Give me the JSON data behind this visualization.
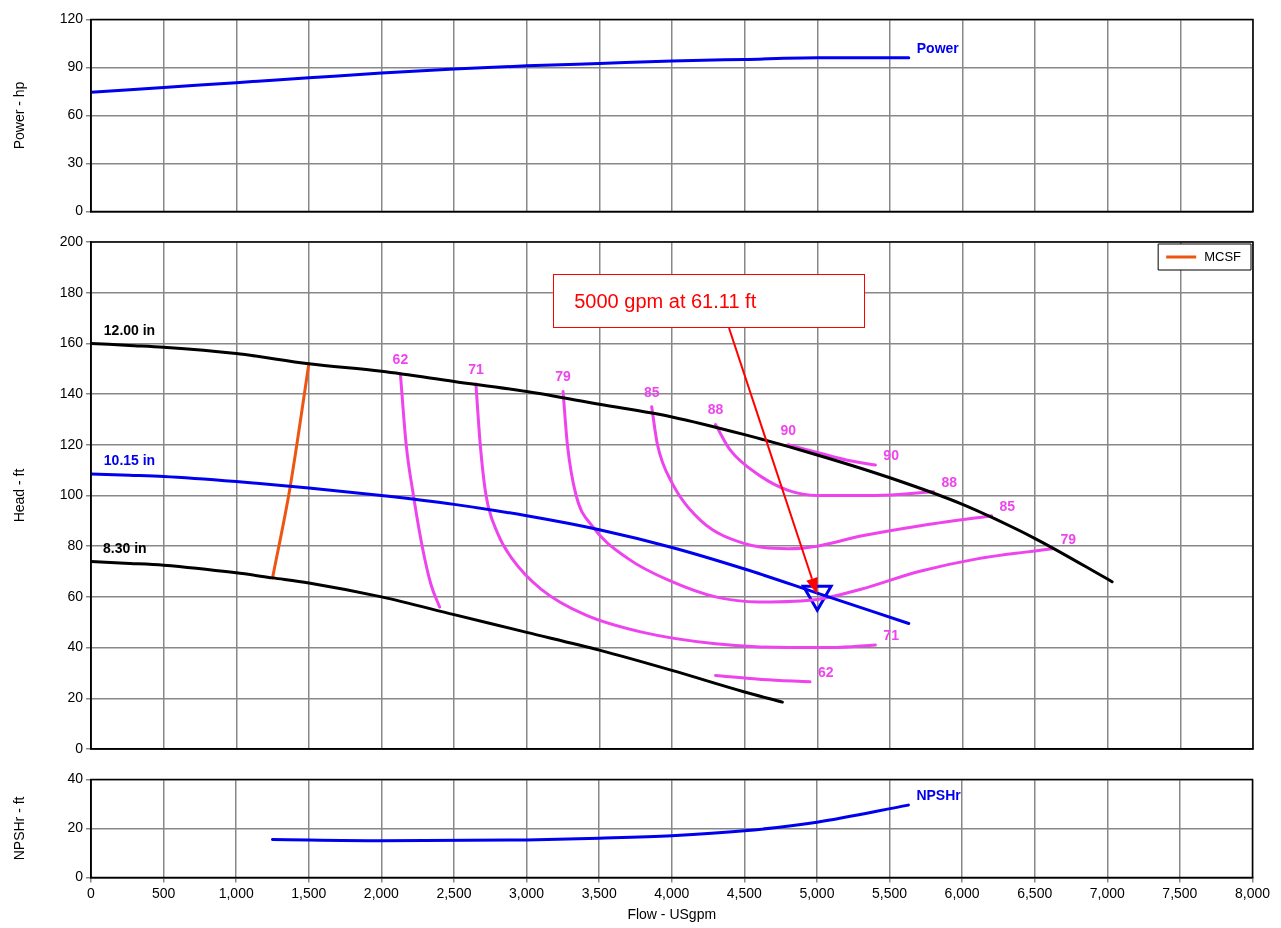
{
  "chart_data": [
    {
      "type": "line",
      "ylabel": "Power - hp",
      "xlim": [
        0,
        8000
      ],
      "xticks": [
        0,
        500,
        1000,
        1500,
        2000,
        2500,
        3000,
        3500,
        4000,
        4500,
        5000,
        5500,
        6000,
        6500,
        7000,
        7500,
        8000
      ],
      "ylim": [
        0,
        120
      ],
      "yticks": [
        0,
        30,
        60,
        90,
        120
      ],
      "grid": true,
      "marker": "none",
      "tick_labels": "y",
      "series": [
        {
          "color": "#0000ee",
          "x": [
            0,
            500,
            1000,
            1500,
            2000,
            2500,
            3000,
            3500,
            4000,
            4500,
            5000,
            5630
          ],
          "values": [
            74.5,
            77.5,
            80.5,
            83.5,
            86.5,
            89,
            91,
            92.5,
            94,
            95,
            96,
            96
          ]
        }
      ],
      "annotations": [
        {
          "text": "Power",
          "x": 5630,
          "y": 96
        }
      ]
    },
    {
      "type": "line",
      "ylabel": "Head - ft",
      "xlim": [
        0,
        8000
      ],
      "xticks": [
        0,
        500,
        1000,
        1500,
        2000,
        2500,
        3000,
        3500,
        4000,
        4500,
        5000,
        5500,
        6000,
        6500,
        7000,
        7500,
        8000
      ],
      "ylim": [
        0,
        200
      ],
      "yticks": [
        0,
        20,
        40,
        60,
        80,
        100,
        120,
        140,
        160,
        180,
        200
      ],
      "grid": true,
      "marker": "none",
      "tick_labels": "y",
      "legend": "top right",
      "series": [
        {
          "color": "#000000",
          "x": [
            0,
            265,
            500,
            1000,
            1500,
            2000,
            2500,
            3000,
            3500,
            4000,
            4500,
            5000,
            5500,
            6000,
            6500,
            7030
          ],
          "values": [
            160,
            159.2,
            158.5,
            156,
            152,
            149,
            145,
            141,
            136,
            131,
            124,
            116,
            107,
            96.5,
            83,
            66
          ]
        },
        {
          "color": "#0000ee",
          "x": [
            0,
            265,
            500,
            1000,
            1500,
            2000,
            2500,
            3000,
            3500,
            4000,
            4500,
            5000,
            5630
          ],
          "values": [
            108.5,
            108,
            107.5,
            105.5,
            103,
            100,
            96.5,
            92,
            86.5,
            79.5,
            71,
            61.5,
            49.5
          ]
        },
        {
          "color": "#000000",
          "x": [
            0,
            233,
            500,
            1000,
            1250,
            1500,
            2000,
            2500,
            3000,
            3500,
            4000,
            4500,
            4760
          ],
          "values": [
            74,
            73.3,
            72.5,
            69.5,
            67.5,
            65.5,
            60,
            53,
            46,
            39,
            31,
            22.5,
            18.5
          ]
        },
        {
          "name": "MCSF",
          "color": "#ee5511",
          "x": [
            1250,
            1370,
            1500
          ],
          "values": [
            67.5,
            103,
            152
          ]
        },
        {
          "color": "#ee44ee",
          "x": [
            2130,
            2170,
            2220,
            2280,
            2340,
            2400,
            3350,
            4300,
            4600,
            4950
          ],
          "values": [
            148,
            120,
            100,
            80,
            65,
            56,
            null,
            29,
            27.5,
            26.5
          ]
        },
        {
          "color": "#ee44ee",
          "x": [
            2650,
            2680,
            2720,
            2800,
            2900,
            3100,
            3400,
            3800,
            4300,
            4800,
            5100,
            5400
          ],
          "values": [
            144,
            120,
            100,
            85,
            75,
            63,
            53,
            46,
            41.5,
            40,
            40,
            41
          ]
        },
        {
          "color": "#ee44ee",
          "x": [
            3250,
            3280,
            3340,
            3450,
            3700,
            4000,
            4300,
            4600,
            5000,
            5300,
            5700,
            6100,
            6620
          ],
          "values": [
            141,
            120,
            100,
            88,
            75,
            66,
            60,
            58,
            59,
            63,
            70,
            75,
            79
          ]
        },
        {
          "color": "#ee44ee",
          "x": [
            3860,
            3900,
            4000,
            4200,
            4500,
            4800,
            5000,
            5300,
            5700,
            6200
          ],
          "values": [
            135,
            120,
            105,
            90,
            81,
            79,
            80,
            84,
            88,
            92
          ]
        },
        {
          "color": "#ee44ee",
          "x": [
            4300,
            4400,
            4600,
            4800,
            5000,
            5400,
            5800
          ],
          "values": [
            128,
            118,
            108,
            102,
            100,
            100,
            101.5
          ]
        },
        {
          "color": "#ee44ee",
          "x": [
            4800,
            5000,
            5200,
            5400
          ],
          "values": [
            120,
            117,
            114,
            112
          ]
        },
        {
          "type": "scatter",
          "marker": "triangle",
          "color": "#0000ee",
          "x": [
            5000
          ],
          "values": [
            61
          ]
        }
      ],
      "annotations": [
        {
          "text": "12.00 in",
          "x": 265,
          "y": 159.2
        },
        {
          "text": "10.15 in",
          "x": 265,
          "y": 108
        },
        {
          "text": "8.30 in",
          "x": 233,
          "y": 73.3
        },
        {
          "text": "62",
          "x": 2130,
          "y": 148
        },
        {
          "text": "71",
          "x": 2650,
          "y": 144
        },
        {
          "text": "79",
          "x": 3250,
          "y": 141
        },
        {
          "text": "85",
          "x": 3860,
          "y": 135
        },
        {
          "text": "88",
          "x": 4300,
          "y": 128
        },
        {
          "text": "90",
          "x": 4800,
          "y": 120
        },
        {
          "text": "90",
          "x": 5400,
          "y": 112
        },
        {
          "text": "88",
          "x": 5800,
          "y": 101.5
        },
        {
          "text": "85",
          "x": 6200,
          "y": 92
        },
        {
          "text": "79",
          "x": 6620,
          "y": 79
        },
        {
          "text": "71",
          "x": 5400,
          "y": 41
        },
        {
          "text": "62",
          "x": 4950,
          "y": 26.5
        },
        "5000 gpm at 61.11 ft"
      ]
    },
    {
      "type": "line",
      "xlabel": "Flow - USgpm",
      "ylabel": "NPSHr - ft",
      "xlim": [
        0,
        8000
      ],
      "xticks": [
        0,
        500,
        {
          "value": 1000,
          "label": "1,000"
        },
        {
          "value": 1500,
          "label": "1,500"
        },
        {
          "value": 2000,
          "label": "2,000"
        },
        {
          "value": 2500,
          "label": "2,500"
        },
        {
          "value": 3000,
          "label": "3,000"
        },
        {
          "value": 3500,
          "label": "3,500"
        },
        {
          "value": 4000,
          "label": "4,000"
        },
        {
          "value": 4500,
          "label": "4,500"
        },
        {
          "value": 5000,
          "label": "5,000"
        },
        {
          "value": 5500,
          "label": "5,500"
        },
        {
          "value": 6000,
          "label": "6,000"
        },
        {
          "value": 6500,
          "label": "6,500"
        },
        {
          "value": 7000,
          "label": "7,000"
        },
        {
          "value": 7500,
          "label": "7,500"
        },
        {
          "value": 8000,
          "label": "8,000"
        }
      ],
      "ylim": [
        0,
        40
      ],
      "yticks": [
        0,
        20,
        40
      ],
      "grid": true,
      "marker": "none",
      "series": [
        {
          "color": "#0000ee",
          "x": [
            1250,
            2000,
            3000,
            3500,
            4000,
            4500,
            5000,
            5630
          ],
          "values": [
            15.5,
            15,
            15.3,
            16,
            17,
            19,
            22.5,
            29.5
          ]
        }
      ],
      "annotations": [
        {
          "text": "NPSHr",
          "x": 5630,
          "y": 29.5
        }
      ]
    }
  ]
}
